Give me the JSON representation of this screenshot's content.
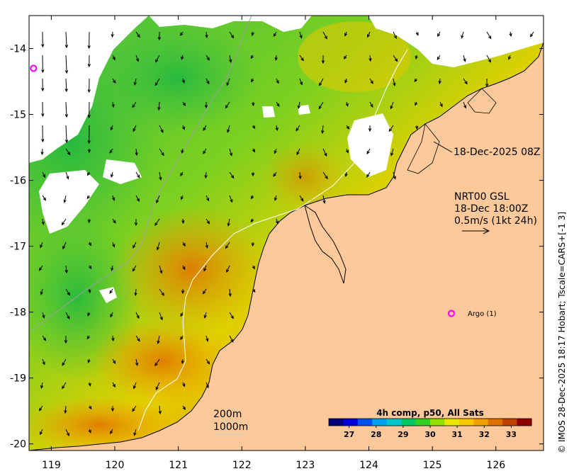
{
  "map": {
    "lon_range": [
      118.65,
      126.75
    ],
    "lat_range": [
      -20.1,
      -13.5
    ],
    "x_ticks": [
      119,
      120,
      121,
      122,
      123,
      124,
      125,
      126
    ],
    "y_ticks": [
      -14,
      -15,
      -16,
      -17,
      -18,
      -19,
      -20
    ],
    "x_tick_labels": [
      "119",
      "120",
      "121",
      "122",
      "123",
      "124",
      "125",
      "126"
    ],
    "y_tick_labels": [
      "-14",
      "-15",
      "-16",
      "-17",
      "-18",
      "-19",
      "-20"
    ]
  },
  "annotations": {
    "pass_time": "18-Dec-2025 08Z",
    "current_source": "NRT00 GSL",
    "current_time": "18-Dec 18:00Z",
    "current_scale": "0.5m/s (1kt 24h)",
    "contour_200": "200m",
    "contour_1000": "1000m",
    "argo_label": "Argo (1)",
    "credit": "© IMOS 28-Dec-2025 18:17 Hobart; Tscale=CARS+[-1 3]"
  },
  "colorbar": {
    "title": "4h comp, p50, All Sats",
    "min": 26.25,
    "max": 33.75,
    "ticks": [
      27,
      28,
      29,
      30,
      31,
      32,
      33
    ],
    "tick_labels": [
      "27",
      "28",
      "29",
      "30",
      "31",
      "32",
      "33"
    ],
    "colors": [
      "#00007a",
      "#0000d8",
      "#0050f0",
      "#00a0f0",
      "#00c8c8",
      "#00c864",
      "#30d020",
      "#90e000",
      "#e8e800",
      "#f8c800",
      "#f0a000",
      "#e07000",
      "#c04000",
      "#900000"
    ]
  },
  "argo_floats": [
    {
      "lon": 118.72,
      "lat": -14.3
    },
    {
      "lon": 125.3,
      "lat": -18.02
    }
  ],
  "colors": {
    "land": "#fdc99a",
    "cloud": "#ffffff",
    "argo": "#ff00ff",
    "coast": "#000000"
  }
}
